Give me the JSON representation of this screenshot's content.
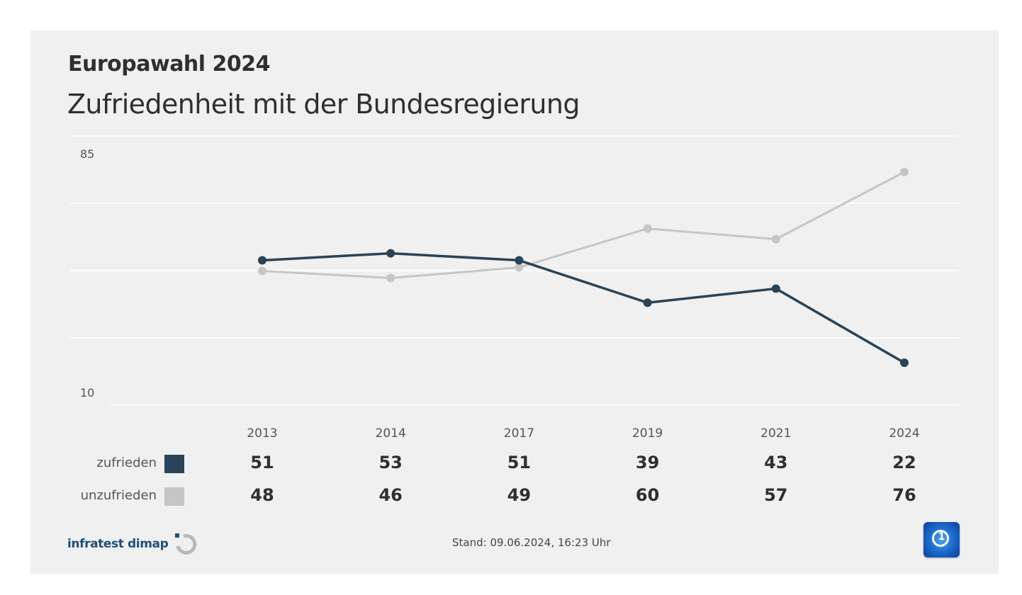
{
  "header": {
    "kicker": "Europawahl 2024",
    "title": "Zufriedenheit mit der Bundesregierung"
  },
  "chart_data": {
    "type": "line",
    "title": "Zufriedenheit mit der Bundesregierung",
    "subtitle": "Europawahl 2024",
    "categories": [
      "2013",
      "2014",
      "2017",
      "2019",
      "2021",
      "2024"
    ],
    "series": [
      {
        "name": "zufrieden",
        "color": "#2b4356",
        "values": [
          51,
          53,
          51,
          39,
          43,
          22
        ]
      },
      {
        "name": "unzufrieden",
        "color": "#c6c6c6",
        "values": [
          48,
          46,
          49,
          60,
          57,
          76
        ]
      }
    ],
    "ylim": [
      10,
      85
    ],
    "yticks": [
      "85",
      "10"
    ],
    "xlabel": "",
    "ylabel": "",
    "grid": true,
    "legend": "bottom-left (table)"
  },
  "footer": {
    "source": "infratest dimap",
    "stand_label": "Stand:",
    "stand_value": "09.06.2024, 16:23 Uhr",
    "broadcaster_logo": "tagesschau-1-icon"
  }
}
